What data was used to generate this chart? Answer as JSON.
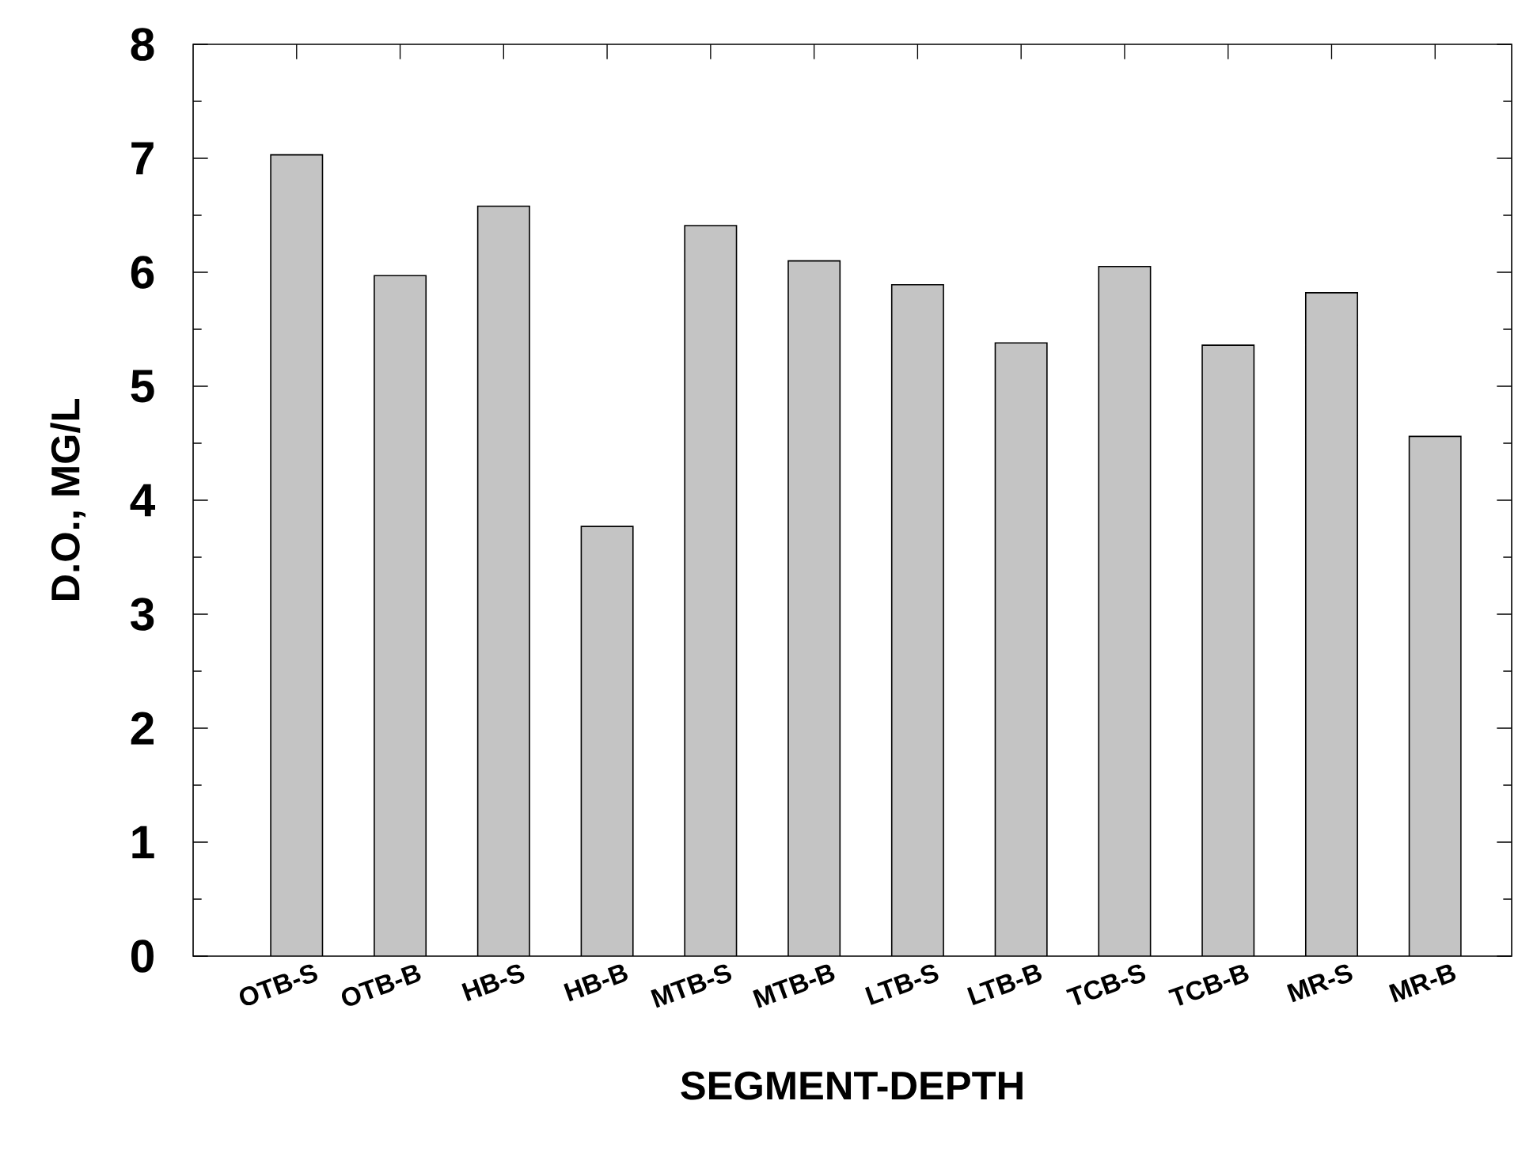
{
  "chart_data": {
    "type": "bar",
    "xlabel": "SEGMENT-DEPTH",
    "ylabel": "D.O., MG/L",
    "categories": [
      "OTB-S",
      "OTB-B",
      "HB-S",
      "HB-B",
      "MTB-S",
      "MTB-B",
      "LTB-S",
      "LTB-B",
      "TCB-S",
      "TCB-B",
      "MR-S",
      "MR-B"
    ],
    "values": [
      7.03,
      5.97,
      6.58,
      3.77,
      6.41,
      6.1,
      5.89,
      5.38,
      6.05,
      5.36,
      5.82,
      4.56
    ],
    "color": "#c4c4c4",
    "ylim": [
      0,
      8
    ],
    "yticks": [
      0,
      1,
      2,
      3,
      4,
      5,
      6,
      7,
      8
    ]
  }
}
